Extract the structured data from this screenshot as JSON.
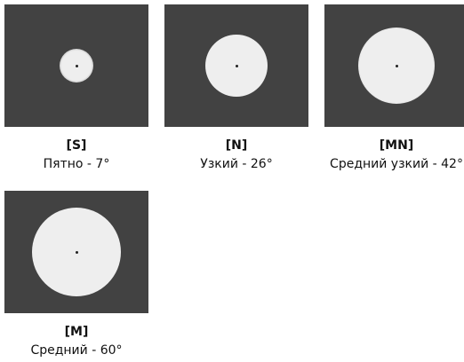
{
  "colors": {
    "panel_background": "#424242",
    "spot": "#eeeeee",
    "center_dot": "#222222"
  },
  "beams": [
    {
      "code": "[S]",
      "description": "Пятно - 7°"
    },
    {
      "code": "[N]",
      "description": "Узкий - 26°"
    },
    {
      "code": "[MN]",
      "description": "Средний узкий - 42°"
    },
    {
      "code": "[M]",
      "description": "Средний - 60°"
    }
  ]
}
